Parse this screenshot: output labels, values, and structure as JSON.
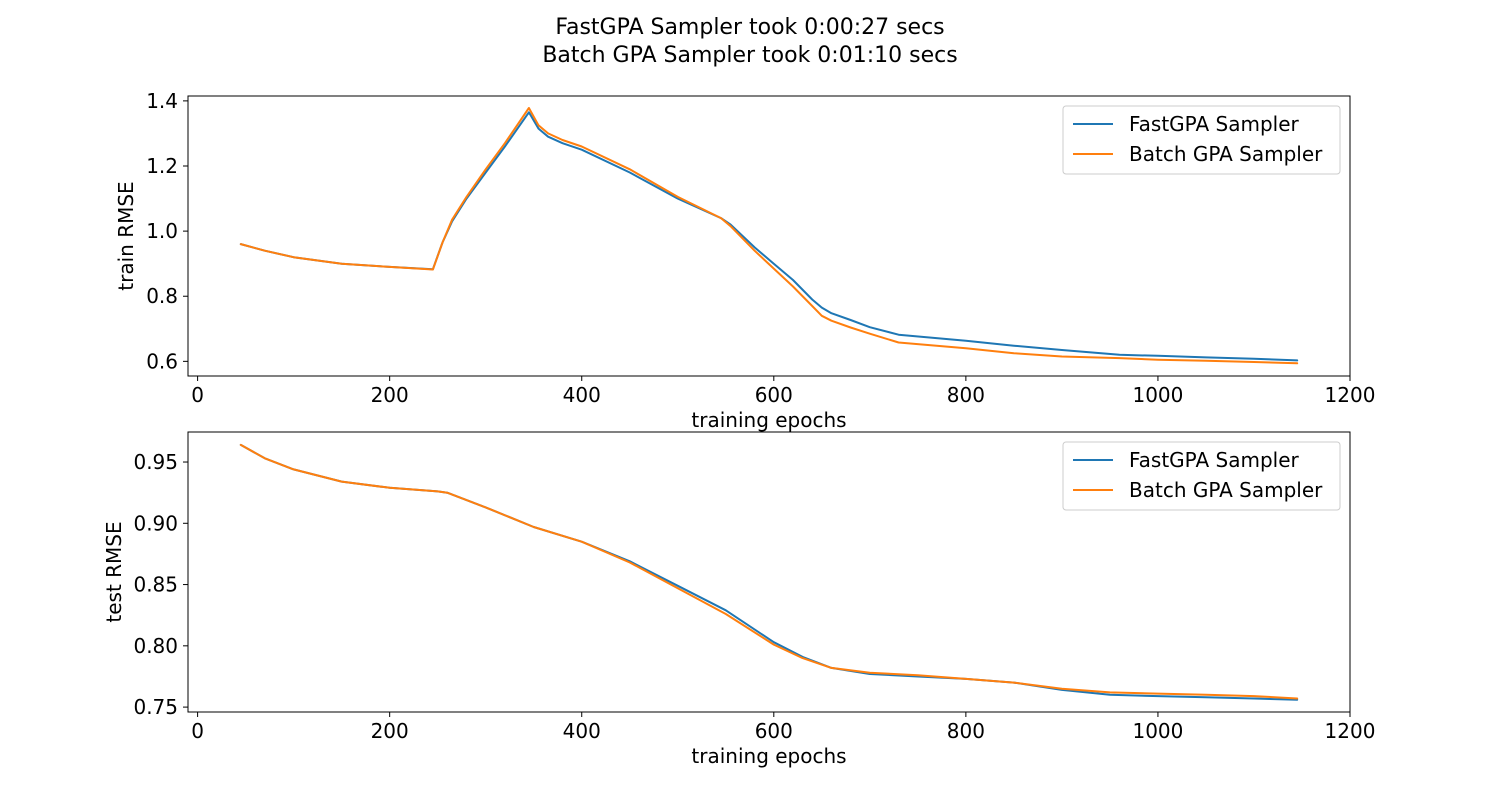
{
  "figure": {
    "title_line1": "FastGPA Sampler took 0:00:27 secs",
    "title_line2": "Batch GPA Sampler took 0:01:10 secs"
  },
  "chart_data": [
    {
      "type": "line",
      "title": "",
      "xlabel": "training epochs",
      "ylabel": "train RMSE",
      "xlim": [
        -10,
        1200
      ],
      "ylim": [
        0.555,
        1.415
      ],
      "xticks": [
        0,
        200,
        400,
        600,
        800,
        1000,
        1200
      ],
      "yticks": [
        0.6,
        0.8,
        1.0,
        1.2,
        1.4
      ],
      "tick_decimals": 1,
      "grid": false,
      "legend_position": "top-right",
      "series": [
        {
          "name": "FastGPA Sampler",
          "color": "#1f77b4",
          "x": [
            45,
            70,
            100,
            150,
            200,
            245,
            255,
            265,
            280,
            300,
            320,
            345,
            355,
            365,
            380,
            400,
            450,
            500,
            545,
            555,
            580,
            600,
            620,
            640,
            650,
            660,
            680,
            700,
            730,
            800,
            850,
            900,
            960,
            1000,
            1050,
            1100,
            1145
          ],
          "y": [
            0.96,
            0.94,
            0.92,
            0.9,
            0.89,
            0.883,
            0.965,
            1.03,
            1.1,
            1.18,
            1.26,
            1.365,
            1.315,
            1.29,
            1.27,
            1.25,
            1.18,
            1.1,
            1.04,
            1.02,
            0.95,
            0.9,
            0.85,
            0.79,
            0.765,
            0.748,
            0.727,
            0.705,
            0.682,
            0.663,
            0.648,
            0.635,
            0.62,
            0.617,
            0.612,
            0.608,
            0.603
          ]
        },
        {
          "name": "Batch GPA Sampler",
          "color": "#ff7f0e",
          "x": [
            45,
            70,
            100,
            150,
            200,
            245,
            255,
            265,
            280,
            300,
            320,
            345,
            355,
            365,
            380,
            400,
            450,
            500,
            545,
            555,
            580,
            600,
            620,
            640,
            650,
            660,
            680,
            700,
            730,
            800,
            850,
            900,
            960,
            1000,
            1050,
            1100,
            1145
          ],
          "y": [
            0.96,
            0.94,
            0.92,
            0.9,
            0.89,
            0.882,
            0.965,
            1.035,
            1.105,
            1.19,
            1.27,
            1.378,
            1.325,
            1.3,
            1.28,
            1.26,
            1.19,
            1.105,
            1.04,
            1.015,
            0.94,
            0.885,
            0.83,
            0.77,
            0.74,
            0.725,
            0.704,
            0.685,
            0.658,
            0.64,
            0.625,
            0.615,
            0.61,
            0.605,
            0.602,
            0.598,
            0.594
          ]
        }
      ]
    },
    {
      "type": "line",
      "title": "",
      "xlabel": "training epochs",
      "ylabel": "test RMSE",
      "xlim": [
        -10,
        1200
      ],
      "ylim": [
        0.746,
        0.9745
      ],
      "xticks": [
        0,
        200,
        400,
        600,
        800,
        1000,
        1200
      ],
      "yticks": [
        0.75,
        0.8,
        0.85,
        0.9,
        0.95
      ],
      "tick_decimals": 2,
      "grid": false,
      "legend_position": "top-right",
      "series": [
        {
          "name": "FastGPA Sampler",
          "color": "#1f77b4",
          "x": [
            45,
            70,
            100,
            150,
            200,
            250,
            260,
            300,
            350,
            400,
            450,
            500,
            550,
            600,
            630,
            660,
            700,
            750,
            800,
            850,
            900,
            950,
            1000,
            1050,
            1100,
            1145
          ],
          "y": [
            0.964,
            0.953,
            0.944,
            0.934,
            0.929,
            0.926,
            0.925,
            0.913,
            0.897,
            0.885,
            0.869,
            0.849,
            0.829,
            0.803,
            0.791,
            0.782,
            0.777,
            0.775,
            0.773,
            0.77,
            0.764,
            0.76,
            0.759,
            0.758,
            0.757,
            0.756
          ]
        },
        {
          "name": "Batch GPA Sampler",
          "color": "#ff7f0e",
          "x": [
            45,
            70,
            100,
            150,
            200,
            250,
            260,
            300,
            350,
            400,
            450,
            500,
            550,
            600,
            630,
            660,
            700,
            750,
            800,
            850,
            900,
            950,
            1000,
            1050,
            1100,
            1145
          ],
          "y": [
            0.964,
            0.953,
            0.944,
            0.934,
            0.929,
            0.926,
            0.925,
            0.913,
            0.897,
            0.885,
            0.868,
            0.847,
            0.826,
            0.801,
            0.79,
            0.782,
            0.778,
            0.776,
            0.773,
            0.77,
            0.765,
            0.762,
            0.761,
            0.76,
            0.759,
            0.757
          ]
        }
      ]
    }
  ]
}
